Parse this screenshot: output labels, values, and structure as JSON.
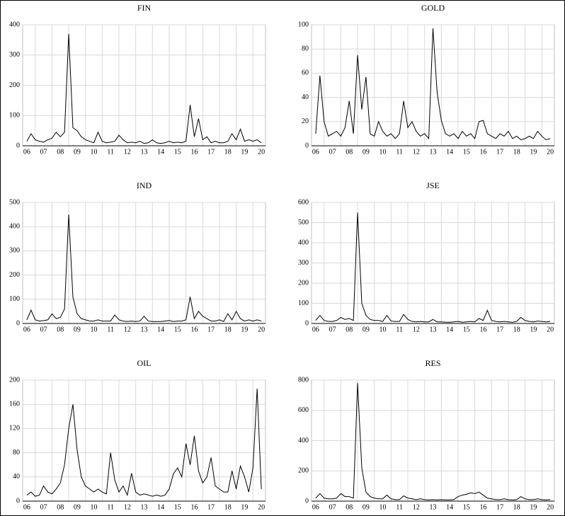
{
  "chart_data": [
    {
      "type": "line",
      "title": "FIN",
      "color": "#000000",
      "grid": true,
      "x": [
        2006,
        2006.25,
        2006.5,
        2006.75,
        2007,
        2007.25,
        2007.5,
        2007.75,
        2008,
        2008.25,
        2008.5,
        2008.75,
        2009,
        2009.25,
        2009.5,
        2009.75,
        2010,
        2010.25,
        2010.5,
        2010.75,
        2011,
        2011.25,
        2011.5,
        2011.75,
        2012,
        2012.25,
        2012.5,
        2012.75,
        2013,
        2013.25,
        2013.5,
        2013.75,
        2014,
        2014.25,
        2014.5,
        2014.75,
        2015,
        2015.25,
        2015.5,
        2015.75,
        2016,
        2016.25,
        2016.5,
        2016.75,
        2017,
        2017.25,
        2017.5,
        2017.75,
        2018,
        2018.25,
        2018.5,
        2018.75,
        2019,
        2019.25,
        2019.5,
        2019.75,
        2020
      ],
      "values": [
        15,
        40,
        20,
        15,
        12,
        20,
        25,
        45,
        30,
        45,
        370,
        60,
        50,
        30,
        20,
        15,
        10,
        45,
        15,
        10,
        12,
        15,
        35,
        20,
        10,
        12,
        10,
        15,
        8,
        10,
        20,
        10,
        8,
        10,
        15,
        10,
        12,
        10,
        15,
        135,
        30,
        90,
        20,
        30,
        10,
        15,
        10,
        10,
        15,
        40,
        20,
        55,
        15,
        20,
        15,
        20,
        10
      ],
      "xlim": [
        2005.75,
        2020.25
      ],
      "xticks": [
        {
          "value": 2006,
          "label": "06"
        },
        {
          "value": 2007,
          "label": "07"
        },
        {
          "value": 2008,
          "label": "08"
        },
        {
          "value": 2009,
          "label": "09"
        },
        {
          "value": 2010,
          "label": "10"
        },
        {
          "value": 2011,
          "label": "11"
        },
        {
          "value": 2012,
          "label": "12"
        },
        {
          "value": 2013,
          "label": "13"
        },
        {
          "value": 2014,
          "label": "14"
        },
        {
          "value": 2015,
          "label": "15"
        },
        {
          "value": 2016,
          "label": "16"
        },
        {
          "value": 2017,
          "label": "17"
        },
        {
          "value": 2018,
          "label": "18"
        },
        {
          "value": 2019,
          "label": "19"
        },
        {
          "value": 2020,
          "label": "20"
        }
      ],
      "ylim": [
        0,
        400
      ],
      "yticks": [
        0,
        100,
        200,
        300,
        400
      ]
    },
    {
      "type": "line",
      "title": "GOLD",
      "color": "#000000",
      "grid": true,
      "x": [
        2006,
        2006.25,
        2006.5,
        2006.75,
        2007,
        2007.25,
        2007.5,
        2007.75,
        2008,
        2008.25,
        2008.5,
        2008.75,
        2009,
        2009.25,
        2009.5,
        2009.75,
        2010,
        2010.25,
        2010.5,
        2010.75,
        2011,
        2011.25,
        2011.5,
        2011.75,
        2012,
        2012.25,
        2012.5,
        2012.75,
        2013,
        2013.25,
        2013.5,
        2013.75,
        2014,
        2014.25,
        2014.5,
        2014.75,
        2015,
        2015.25,
        2015.5,
        2015.75,
        2016,
        2016.25,
        2016.5,
        2016.75,
        2017,
        2017.25,
        2017.5,
        2017.75,
        2018,
        2018.25,
        2018.5,
        2018.75,
        2019,
        2019.25,
        2019.5,
        2019.75,
        2020
      ],
      "values": [
        10,
        58,
        20,
        8,
        10,
        12,
        8,
        15,
        37,
        10,
        75,
        30,
        57,
        10,
        8,
        20,
        12,
        8,
        10,
        6,
        10,
        37,
        15,
        20,
        12,
        8,
        10,
        6,
        97,
        44,
        21,
        10,
        8,
        10,
        6,
        12,
        8,
        10,
        6,
        20,
        21,
        10,
        8,
        6,
        10,
        8,
        12,
        6,
        8,
        5,
        6,
        8,
        6,
        12,
        8,
        5,
        6
      ],
      "xlim": [
        2005.75,
        2020.25
      ],
      "xticks": [
        {
          "value": 2006,
          "label": "06"
        },
        {
          "value": 2007,
          "label": "07"
        },
        {
          "value": 2008,
          "label": "08"
        },
        {
          "value": 2009,
          "label": "09"
        },
        {
          "value": 2010,
          "label": "10"
        },
        {
          "value": 2011,
          "label": "11"
        },
        {
          "value": 2012,
          "label": "12"
        },
        {
          "value": 2013,
          "label": "13"
        },
        {
          "value": 2014,
          "label": "14"
        },
        {
          "value": 2015,
          "label": "15"
        },
        {
          "value": 2016,
          "label": "16"
        },
        {
          "value": 2017,
          "label": "17"
        },
        {
          "value": 2018,
          "label": "18"
        },
        {
          "value": 2019,
          "label": "19"
        },
        {
          "value": 2020,
          "label": "20"
        }
      ],
      "ylim": [
        0,
        100
      ],
      "yticks": [
        0,
        20,
        40,
        60,
        80,
        100
      ]
    },
    {
      "type": "line",
      "title": "IND",
      "color": "#000000",
      "grid": true,
      "x": [
        2006,
        2006.25,
        2006.5,
        2006.75,
        2007,
        2007.25,
        2007.5,
        2007.75,
        2008,
        2008.25,
        2008.5,
        2008.75,
        2009,
        2009.25,
        2009.5,
        2009.75,
        2010,
        2010.25,
        2010.5,
        2010.75,
        2011,
        2011.25,
        2011.5,
        2011.75,
        2012,
        2012.25,
        2012.5,
        2012.75,
        2013,
        2013.25,
        2013.5,
        2013.75,
        2014,
        2014.25,
        2014.5,
        2014.75,
        2015,
        2015.25,
        2015.5,
        2015.75,
        2016,
        2016.25,
        2016.5,
        2016.75,
        2017,
        2017.25,
        2017.5,
        2017.75,
        2018,
        2018.25,
        2018.5,
        2018.75,
        2019,
        2019.25,
        2019.5,
        2019.75,
        2020
      ],
      "values": [
        15,
        55,
        15,
        10,
        12,
        15,
        40,
        20,
        25,
        60,
        450,
        110,
        40,
        20,
        15,
        10,
        10,
        15,
        10,
        10,
        10,
        35,
        15,
        10,
        8,
        10,
        8,
        10,
        30,
        10,
        8,
        8,
        8,
        10,
        12,
        8,
        10,
        10,
        15,
        110,
        20,
        50,
        30,
        20,
        10,
        10,
        15,
        8,
        40,
        15,
        50,
        20,
        10,
        15,
        10,
        15,
        10
      ],
      "xlim": [
        2005.75,
        2020.25
      ],
      "xticks": [
        {
          "value": 2006,
          "label": "06"
        },
        {
          "value": 2007,
          "label": "07"
        },
        {
          "value": 2008,
          "label": "08"
        },
        {
          "value": 2009,
          "label": "09"
        },
        {
          "value": 2010,
          "label": "10"
        },
        {
          "value": 2011,
          "label": "11"
        },
        {
          "value": 2012,
          "label": "12"
        },
        {
          "value": 2013,
          "label": "13"
        },
        {
          "value": 2014,
          "label": "14"
        },
        {
          "value": 2015,
          "label": "15"
        },
        {
          "value": 2016,
          "label": "16"
        },
        {
          "value": 2017,
          "label": "17"
        },
        {
          "value": 2018,
          "label": "18"
        },
        {
          "value": 2019,
          "label": "19"
        },
        {
          "value": 2020,
          "label": "20"
        }
      ],
      "ylim": [
        0,
        500
      ],
      "yticks": [
        0,
        100,
        200,
        300,
        400,
        500
      ]
    },
    {
      "type": "line",
      "title": "JSE",
      "color": "#000000",
      "grid": true,
      "x": [
        2006,
        2006.25,
        2006.5,
        2006.75,
        2007,
        2007.25,
        2007.5,
        2007.75,
        2008,
        2008.25,
        2008.5,
        2008.75,
        2009,
        2009.25,
        2009.5,
        2009.75,
        2010,
        2010.25,
        2010.5,
        2010.75,
        2011,
        2011.25,
        2011.5,
        2011.75,
        2012,
        2012.25,
        2012.5,
        2012.75,
        2013,
        2013.25,
        2013.5,
        2013.75,
        2014,
        2014.25,
        2014.5,
        2014.75,
        2015,
        2015.25,
        2015.5,
        2015.75,
        2016,
        2016.25,
        2016.5,
        2016.75,
        2017,
        2017.25,
        2017.5,
        2017.75,
        2018,
        2018.25,
        2018.5,
        2018.75,
        2019,
        2019.25,
        2019.5,
        2019.75,
        2020
      ],
      "values": [
        15,
        40,
        15,
        10,
        10,
        15,
        30,
        20,
        25,
        15,
        550,
        100,
        40,
        20,
        15,
        15,
        10,
        40,
        12,
        10,
        10,
        45,
        20,
        10,
        8,
        10,
        8,
        8,
        20,
        8,
        8,
        6,
        6,
        8,
        10,
        6,
        8,
        10,
        8,
        25,
        15,
        65,
        15,
        10,
        8,
        10,
        8,
        6,
        10,
        30,
        15,
        10,
        8,
        12,
        10,
        8,
        10
      ],
      "xlim": [
        2005.75,
        2020.25
      ],
      "xticks": [
        {
          "value": 2006,
          "label": "06"
        },
        {
          "value": 2007,
          "label": "07"
        },
        {
          "value": 2008,
          "label": "08"
        },
        {
          "value": 2009,
          "label": "09"
        },
        {
          "value": 2010,
          "label": "10"
        },
        {
          "value": 2011,
          "label": "11"
        },
        {
          "value": 2012,
          "label": "12"
        },
        {
          "value": 2013,
          "label": "13"
        },
        {
          "value": 2014,
          "label": "14"
        },
        {
          "value": 2015,
          "label": "15"
        },
        {
          "value": 2016,
          "label": "16"
        },
        {
          "value": 2017,
          "label": "17"
        },
        {
          "value": 2018,
          "label": "18"
        },
        {
          "value": 2019,
          "label": "19"
        },
        {
          "value": 2020,
          "label": "20"
        }
      ],
      "ylim": [
        0,
        600
      ],
      "yticks": [
        0,
        100,
        200,
        300,
        400,
        500,
        600
      ]
    },
    {
      "type": "line",
      "title": "OIL",
      "color": "#000000",
      "grid": true,
      "x": [
        2006,
        2006.25,
        2006.5,
        2006.75,
        2007,
        2007.25,
        2007.5,
        2007.75,
        2008,
        2008.25,
        2008.5,
        2008.75,
        2009,
        2009.25,
        2009.5,
        2009.75,
        2010,
        2010.25,
        2010.5,
        2010.75,
        2011,
        2011.25,
        2011.5,
        2011.75,
        2012,
        2012.25,
        2012.5,
        2012.75,
        2013,
        2013.25,
        2013.5,
        2013.75,
        2014,
        2014.25,
        2014.5,
        2014.75,
        2015,
        2015.25,
        2015.5,
        2015.75,
        2016,
        2016.25,
        2016.5,
        2016.75,
        2017,
        2017.25,
        2017.5,
        2017.75,
        2018,
        2018.25,
        2018.5,
        2018.75,
        2019,
        2019.25,
        2019.5,
        2019.75,
        2020
      ],
      "values": [
        10,
        15,
        8,
        10,
        25,
        15,
        12,
        20,
        30,
        60,
        120,
        160,
        85,
        40,
        25,
        20,
        15,
        20,
        15,
        12,
        80,
        35,
        15,
        25,
        10,
        46,
        15,
        10,
        12,
        10,
        8,
        10,
        8,
        10,
        20,
        45,
        55,
        40,
        95,
        60,
        108,
        50,
        30,
        40,
        72,
        25,
        20,
        15,
        15,
        50,
        20,
        58,
        40,
        15,
        55,
        186,
        20
      ],
      "xlim": [
        2005.75,
        2020.25
      ],
      "xticks": [
        {
          "value": 2006,
          "label": "06"
        },
        {
          "value": 2007,
          "label": "07"
        },
        {
          "value": 2008,
          "label": "08"
        },
        {
          "value": 2009,
          "label": "09"
        },
        {
          "value": 2010,
          "label": "10"
        },
        {
          "value": 2011,
          "label": "11"
        },
        {
          "value": 2012,
          "label": "12"
        },
        {
          "value": 2013,
          "label": "13"
        },
        {
          "value": 2014,
          "label": "14"
        },
        {
          "value": 2015,
          "label": "15"
        },
        {
          "value": 2016,
          "label": "16"
        },
        {
          "value": 2017,
          "label": "17"
        },
        {
          "value": 2018,
          "label": "18"
        },
        {
          "value": 2019,
          "label": "19"
        },
        {
          "value": 2020,
          "label": "20"
        }
      ],
      "ylim": [
        0,
        200
      ],
      "yticks": [
        0,
        40,
        80,
        120,
        160,
        200
      ]
    },
    {
      "type": "line",
      "title": "RES",
      "color": "#000000",
      "grid": true,
      "x": [
        2006,
        2006.25,
        2006.5,
        2006.75,
        2007,
        2007.25,
        2007.5,
        2007.75,
        2008,
        2008.25,
        2008.5,
        2008.75,
        2009,
        2009.25,
        2009.5,
        2009.75,
        2010,
        2010.25,
        2010.5,
        2010.75,
        2011,
        2011.25,
        2011.5,
        2011.75,
        2012,
        2012.25,
        2012.5,
        2012.75,
        2013,
        2013.25,
        2013.5,
        2013.75,
        2014,
        2014.25,
        2014.5,
        2014.75,
        2015,
        2015.25,
        2015.5,
        2015.75,
        2016,
        2016.25,
        2016.5,
        2016.75,
        2017,
        2017.25,
        2017.5,
        2017.75,
        2018,
        2018.25,
        2018.5,
        2018.75,
        2019,
        2019.25,
        2019.5,
        2019.75,
        2020
      ],
      "values": [
        20,
        50,
        20,
        15,
        15,
        20,
        50,
        30,
        30,
        20,
        780,
        220,
        60,
        30,
        20,
        15,
        15,
        40,
        15,
        10,
        10,
        35,
        20,
        15,
        10,
        15,
        10,
        8,
        10,
        8,
        10,
        8,
        8,
        10,
        30,
        40,
        45,
        55,
        50,
        60,
        40,
        20,
        15,
        10,
        10,
        15,
        10,
        8,
        10,
        30,
        15,
        10,
        10,
        15,
        10,
        8,
        10
      ],
      "xlim": [
        2005.75,
        2020.25
      ],
      "xticks": [
        {
          "value": 2006,
          "label": "06"
        },
        {
          "value": 2007,
          "label": "07"
        },
        {
          "value": 2008,
          "label": "08"
        },
        {
          "value": 2009,
          "label": "09"
        },
        {
          "value": 2010,
          "label": "10"
        },
        {
          "value": 2011,
          "label": "11"
        },
        {
          "value": 2012,
          "label": "12"
        },
        {
          "value": 2013,
          "label": "13"
        },
        {
          "value": 2014,
          "label": "14"
        },
        {
          "value": 2015,
          "label": "15"
        },
        {
          "value": 2016,
          "label": "16"
        },
        {
          "value": 2017,
          "label": "17"
        },
        {
          "value": 2018,
          "label": "18"
        },
        {
          "value": 2019,
          "label": "19"
        },
        {
          "value": 2020,
          "label": "20"
        }
      ],
      "ylim": [
        0,
        800
      ],
      "yticks": [
        0,
        200,
        400,
        600,
        800
      ]
    }
  ]
}
